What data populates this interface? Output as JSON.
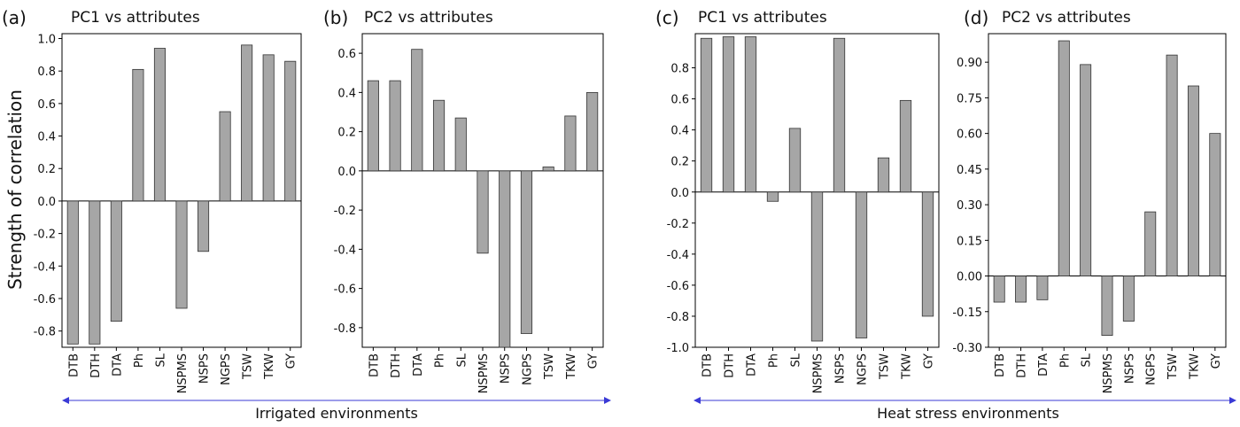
{
  "figure": {
    "ylabel": "Strength of correlation",
    "environments": [
      {
        "label": "Irrigated environments",
        "panels": [
          0,
          1
        ]
      },
      {
        "label": "Heat stress environments",
        "panels": [
          2,
          3
        ]
      }
    ],
    "colors": {
      "bar": "#a6a6a6",
      "bar_stroke": "#333333",
      "axis": "#000000",
      "arrow": "#3a3ad6"
    }
  },
  "chart_data": [
    {
      "type": "bar",
      "letter": "(a)",
      "title": "PC1 vs attributes",
      "categories": [
        "DTB",
        "DTH",
        "DTA",
        "Ph",
        "SL",
        "NSPMS",
        "NSPS",
        "NGPS",
        "TSW",
        "TKW",
        "GY"
      ],
      "values": [
        -0.88,
        -0.88,
        -0.74,
        0.81,
        0.94,
        -0.66,
        -0.31,
        0.55,
        0.96,
        0.9,
        0.86
      ],
      "ylim": [
        -0.9,
        1.03
      ],
      "yticks": [
        1.0,
        0.8,
        0.6,
        0.4,
        0.2,
        0.0,
        -0.2,
        -0.4,
        -0.6,
        -0.8
      ],
      "ytick_labels": [
        "1.0",
        "0.8",
        "0.6",
        "0.4",
        "0.2",
        "0.0",
        "-0.2",
        "-0.4",
        "-0.6",
        "-0.8"
      ],
      "xlabel": "",
      "legend": "none",
      "grid": false
    },
    {
      "type": "bar",
      "letter": "(b)",
      "title": "PC2 vs attributes",
      "categories": [
        "DTB",
        "DTH",
        "DTA",
        "Ph",
        "SL",
        "NSPMS",
        "NSPS",
        "NGPS",
        "TSW",
        "TKW",
        "GY"
      ],
      "values": [
        0.46,
        0.46,
        0.62,
        0.36,
        0.27,
        -0.42,
        -0.9,
        -0.83,
        0.02,
        0.28,
        0.4
      ],
      "ylim": [
        -0.9,
        0.7
      ],
      "yticks": [
        0.6,
        0.4,
        0.2,
        0.0,
        -0.2,
        -0.4,
        -0.6,
        -0.8
      ],
      "ytick_labels": [
        "0.6",
        "0.4",
        "0.2",
        "0.0",
        "-0.2",
        "-0.4",
        "-0.6",
        "-0.8"
      ],
      "xlabel": "",
      "legend": "none",
      "grid": false
    },
    {
      "type": "bar",
      "letter": "(c)",
      "title": "PC1 vs attributes",
      "categories": [
        "DTB",
        "DTH",
        "DTA",
        "Ph",
        "SL",
        "NSPMS",
        "NSPS",
        "NGPS",
        "TSW",
        "TKW",
        "GY"
      ],
      "values": [
        0.99,
        1.0,
        1.0,
        -0.06,
        0.41,
        -0.96,
        0.99,
        -0.94,
        0.22,
        0.59,
        -0.8
      ],
      "ylim": [
        -1.0,
        1.02
      ],
      "yticks": [
        0.8,
        0.6,
        0.4,
        0.2,
        0.0,
        -0.2,
        -0.4,
        -0.6,
        -0.8,
        -1.0
      ],
      "ytick_labels": [
        "0.8",
        "0.6",
        "0.4",
        "0.2",
        "0.0",
        "-0.2",
        "-0.4",
        "-0.6",
        "-0.8",
        "-1.0"
      ],
      "xlabel": "",
      "legend": "none",
      "grid": false
    },
    {
      "type": "bar",
      "letter": "(d)",
      "title": "PC2 vs attributes",
      "categories": [
        "DTB",
        "DTH",
        "DTA",
        "Ph",
        "SL",
        "NSPMS",
        "NSPS",
        "NGPS",
        "TSW",
        "TKW",
        "GY"
      ],
      "values": [
        -0.11,
        -0.11,
        -0.1,
        0.99,
        0.89,
        -0.25,
        -0.19,
        0.27,
        0.93,
        0.8,
        0.6
      ],
      "ylim": [
        -0.3,
        1.02
      ],
      "yticks": [
        0.9,
        0.75,
        0.6,
        0.45,
        0.3,
        0.15,
        0.0,
        -0.15,
        -0.3
      ],
      "ytick_labels": [
        "0.90",
        "0.75",
        "0.60",
        "0.45",
        "0.30",
        "0.15",
        "0.00",
        "-0.15",
        "-0.30"
      ],
      "xlabel": "",
      "legend": "none",
      "grid": false
    }
  ]
}
